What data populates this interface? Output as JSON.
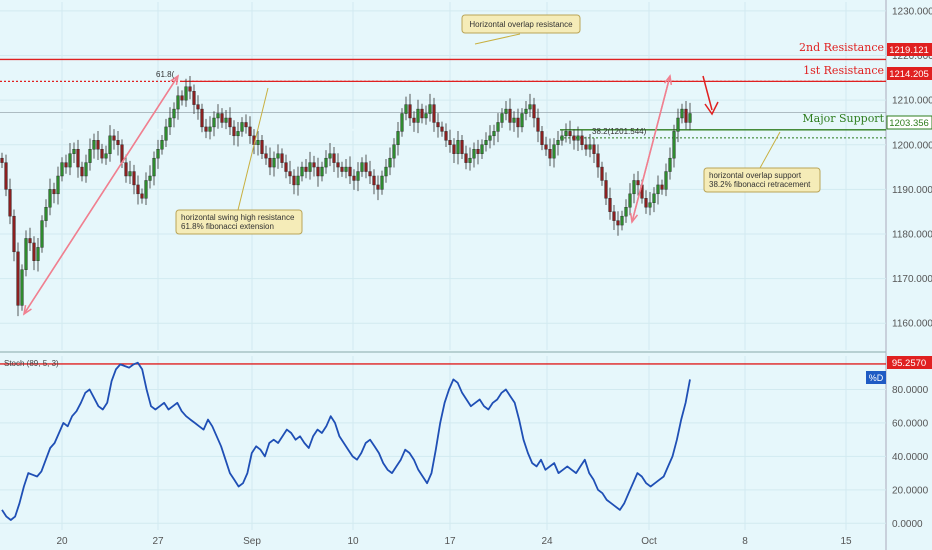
{
  "chart_data": {
    "type": "candlestick",
    "price_panel": {
      "ylim": [
        1154,
        1232
      ],
      "y_ticks": [
        1160,
        1170,
        1180,
        1190,
        1200,
        1210,
        1220,
        1230
      ],
      "y_tick_labels": [
        "1160.000",
        "1170.000",
        "1180.000",
        "1190.000",
        "1200.000",
        "1210.000",
        "1220.000",
        "1230.000"
      ],
      "x_tick_labels": [
        "20",
        "27",
        "Sep",
        "10",
        "17",
        "24",
        "Oct",
        "8",
        "15"
      ],
      "levels": [
        {
          "name": "2nd Resistance",
          "value": 1219.121,
          "label": "1219.121",
          "color": "#e02020",
          "style": "solid"
        },
        {
          "name": "1st Resistance",
          "value": 1214.205,
          "label": "1214.205",
          "color": "#e02020",
          "style": "dotted"
        },
        {
          "name": "Major Support",
          "value": 1203.356,
          "label": "1203.356",
          "color": "#2e7d1e",
          "style": "solid"
        }
      ],
      "last_price": 1207.2,
      "fib_retracement": {
        "value": 1201.544,
        "label": "38.2(1201.544)"
      },
      "fib_extension_label": "61.8(",
      "annotations": [
        "Horizontal overlap resistance",
        "horizontal swing high resistance",
        "61.8% fibonacci extension",
        "horizontal overlap support",
        "38.2% fibonacci retracement"
      ],
      "closes": [
        1196,
        1190,
        1184,
        1176,
        1164,
        1172,
        1179,
        1178,
        1174,
        1177,
        1183,
        1186,
        1190,
        1189,
        1193,
        1196,
        1195,
        1198,
        1199,
        1195,
        1193,
        1196,
        1199,
        1201,
        1199,
        1197,
        1198,
        1202,
        1201,
        1200,
        1196,
        1193,
        1194,
        1191,
        1189,
        1188,
        1192,
        1193,
        1197,
        1199,
        1201,
        1204,
        1206,
        1208,
        1211,
        1210,
        1213,
        1212,
        1209,
        1208,
        1204,
        1203,
        1204,
        1206,
        1207,
        1205,
        1206,
        1204,
        1202,
        1203,
        1205,
        1204,
        1202,
        1200,
        1201,
        1198,
        1197,
        1195,
        1197,
        1198,
        1196,
        1194,
        1193,
        1191,
        1193,
        1195,
        1194,
        1196,
        1195,
        1193,
        1195,
        1197,
        1198,
        1196,
        1195,
        1194,
        1195,
        1193,
        1192,
        1194,
        1196,
        1194,
        1193,
        1191,
        1190,
        1193,
        1195,
        1197,
        1200,
        1203,
        1207,
        1209,
        1206,
        1205,
        1208,
        1206,
        1207,
        1209,
        1205,
        1204,
        1203,
        1201,
        1200,
        1198,
        1201,
        1198,
        1196,
        1197,
        1199,
        1198,
        1200,
        1201,
        1202,
        1203,
        1205,
        1207,
        1208,
        1205,
        1206,
        1204,
        1207,
        1208,
        1209,
        1206,
        1203,
        1200,
        1199,
        1197,
        1200,
        1201,
        1202,
        1203,
        1202,
        1201,
        1202,
        1200,
        1199,
        1200,
        1198,
        1195,
        1192,
        1188,
        1185,
        1183,
        1182,
        1184,
        1186,
        1189,
        1192,
        1191,
        1188,
        1186,
        1187,
        1189,
        1191,
        1190,
        1194,
        1197,
        1203,
        1206,
        1208,
        1205,
        1207
      ]
    },
    "stoch_panel": {
      "title": "Stoch (89, 5, 3)",
      "ylim": [
        -4,
        100
      ],
      "y_ticks": [
        0,
        20,
        40,
        60,
        80
      ],
      "y_tick_labels": [
        "0.0000",
        "20.0000",
        "40.0000",
        "60.0000",
        "80.0000"
      ],
      "level": {
        "value": 95.257,
        "label": "95.2570",
        "color": "#e02020"
      },
      "series_name": "%D",
      "values": [
        8,
        4,
        2,
        4,
        12,
        22,
        30,
        29,
        28,
        31,
        38,
        45,
        48,
        54,
        60,
        58,
        64,
        67,
        72,
        78,
        80,
        75,
        70,
        68,
        72,
        85,
        92,
        95,
        94,
        93,
        95,
        96,
        92,
        80,
        70,
        68,
        70,
        72,
        68,
        70,
        72,
        67,
        64,
        62,
        60,
        58,
        56,
        62,
        58,
        52,
        46,
        38,
        30,
        26,
        22,
        24,
        30,
        42,
        46,
        44,
        40,
        48,
        50,
        48,
        52,
        56,
        54,
        50,
        52,
        48,
        45,
        52,
        56,
        54,
        58,
        64,
        60,
        52,
        48,
        44,
        40,
        38,
        42,
        48,
        50,
        46,
        42,
        36,
        32,
        30,
        34,
        38,
        44,
        42,
        38,
        32,
        28,
        24,
        30,
        44,
        60,
        72,
        80,
        86,
        84,
        78,
        74,
        70,
        72,
        74,
        70,
        68,
        72,
        74,
        78,
        80,
        76,
        72,
        62,
        50,
        42,
        36,
        34,
        38,
        32,
        34,
        36,
        30,
        32,
        34,
        32,
        30,
        34,
        38,
        30,
        26,
        20,
        18,
        14,
        12,
        10,
        8,
        12,
        18,
        24,
        30,
        28,
        24,
        22,
        24,
        26,
        28,
        34,
        40,
        50,
        62,
        72,
        86
      ]
    }
  },
  "axis_badges": {
    "price_last": "1207.200",
    "stoch_series": "%D"
  }
}
